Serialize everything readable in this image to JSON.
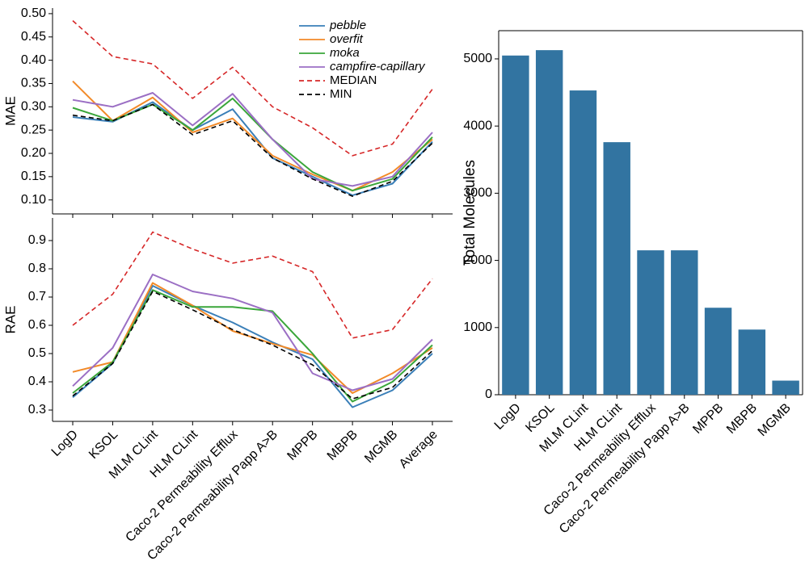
{
  "chart_data": [
    {
      "type": "line",
      "ylabel": "MAE",
      "legend": "upper right",
      "ylim": [
        0.07,
        0.512
      ],
      "yticks": [
        {
          "value": 0.1,
          "label": "0.10"
        },
        0.15,
        {
          "value": 0.2,
          "label": "0.20"
        },
        0.25,
        {
          "value": 0.3,
          "label": "0.30"
        },
        0.35,
        {
          "value": 0.4,
          "label": "0.40"
        },
        0.45,
        {
          "value": 0.5,
          "label": "0.50"
        }
      ],
      "series": [
        {
          "name": "pebble",
          "color": "#3a7fb8",
          "linestyle": "solid",
          "values": [
            0.278,
            0.268,
            0.31,
            0.25,
            0.295,
            0.19,
            0.15,
            0.11,
            0.135,
            0.225
          ]
        },
        {
          "name": "overfit",
          "color": "#f28a28",
          "linestyle": "solid",
          "values": [
            0.355,
            0.27,
            0.32,
            0.245,
            0.275,
            0.195,
            0.155,
            0.12,
            0.16,
            0.23
          ]
        },
        {
          "name": "moka",
          "color": "#3aa63a",
          "linestyle": "solid",
          "values": [
            0.298,
            0.27,
            0.305,
            0.25,
            0.318,
            0.23,
            0.16,
            0.12,
            0.145,
            0.235
          ]
        },
        {
          "name": "campfire-capillary",
          "color": "#9b6fc4",
          "linestyle": "solid",
          "values": [
            0.315,
            0.3,
            0.33,
            0.26,
            0.328,
            0.23,
            0.145,
            0.13,
            0.15,
            0.245
          ]
        },
        {
          "name": "MEDIAN",
          "color": "#d62728",
          "linestyle": "dashed",
          "values": [
            0.485,
            0.408,
            0.392,
            0.318,
            0.385,
            0.3,
            0.255,
            0.195,
            0.22,
            0.338
          ]
        },
        {
          "name": "MIN",
          "color": "#000000",
          "linestyle": "dashed",
          "values": [
            0.282,
            0.27,
            0.305,
            0.24,
            0.27,
            0.19,
            0.145,
            0.108,
            0.14,
            0.222
          ]
        }
      ]
    },
    {
      "type": "line",
      "ylabel": "RAE",
      "categories": [
        "LogD",
        "KSOL",
        "MLM CLint",
        "HLM CLint",
        "Caco-2 Permeability Efflux",
        "Caco-2 Permeability Papp A>B",
        "MPPB",
        "MBPB",
        "MGMB",
        "Average"
      ],
      "category_colors": [
        "#000000",
        "#000000",
        "#000000",
        "#000000",
        "#000000",
        "#000000",
        "#000000",
        "#000000",
        "#000000",
        "#cc0000"
      ],
      "ylim": [
        0.26,
        0.98
      ],
      "yticks": [
        0.3,
        0.4,
        0.5,
        0.6,
        0.7,
        0.8,
        0.9
      ],
      "series": [
        {
          "name": "pebble",
          "color": "#3a7fb8",
          "linestyle": "solid",
          "values": [
            0.345,
            0.465,
            0.74,
            0.67,
            0.61,
            0.54,
            0.48,
            0.31,
            0.37,
            0.5
          ]
        },
        {
          "name": "overfit",
          "color": "#f28a28",
          "linestyle": "solid",
          "values": [
            0.435,
            0.47,
            0.75,
            0.67,
            0.58,
            0.535,
            0.495,
            0.36,
            0.43,
            0.52
          ]
        },
        {
          "name": "moka",
          "color": "#3aa63a",
          "linestyle": "solid",
          "values": [
            0.36,
            0.47,
            0.725,
            0.665,
            0.665,
            0.65,
            0.5,
            0.33,
            0.4,
            0.53
          ]
        },
        {
          "name": "campfire-capillary",
          "color": "#9b6fc4",
          "linestyle": "solid",
          "values": [
            0.385,
            0.52,
            0.78,
            0.72,
            0.695,
            0.645,
            0.43,
            0.37,
            0.41,
            0.55
          ]
        },
        {
          "name": "MEDIAN",
          "color": "#d62728",
          "linestyle": "dashed",
          "values": [
            0.6,
            0.71,
            0.93,
            0.87,
            0.82,
            0.845,
            0.79,
            0.555,
            0.585,
            0.765
          ]
        },
        {
          "name": "MIN",
          "color": "#000000",
          "linestyle": "dashed",
          "values": [
            0.35,
            0.465,
            0.72,
            0.655,
            0.585,
            0.53,
            0.46,
            0.34,
            0.38,
            0.51
          ]
        }
      ]
    },
    {
      "type": "bar",
      "ylabel": "Total Molecules",
      "color": "#3274a1",
      "categories": [
        "LogD",
        "KSOL",
        "MLM CLint",
        "HLM CLint",
        "Caco-2 Permeability Efflux",
        "Caco-2 Permeability Papp A>B",
        "MPPB",
        "MBPB",
        "MGMB"
      ],
      "values": [
        5050,
        5130,
        4530,
        3760,
        2150,
        2150,
        1295,
        970,
        210
      ],
      "ylim": [
        0,
        5420
      ],
      "yticks": [
        0,
        1000,
        2000,
        3000,
        4000,
        5000
      ]
    }
  ]
}
